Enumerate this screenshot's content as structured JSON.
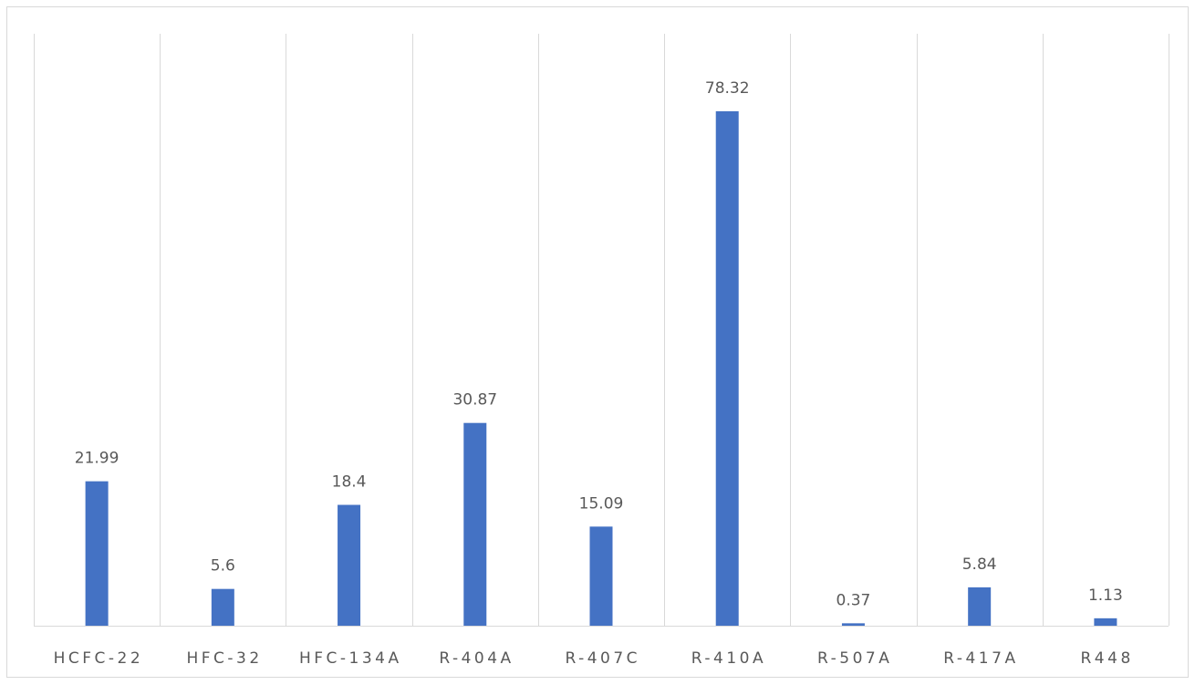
{
  "chart_data": {
    "type": "bar",
    "title": "",
    "xlabel": "",
    "ylabel": "",
    "categories": [
      "HCFC-22",
      "HFC-32",
      "HFC-134A",
      "R-404A",
      "R-407C",
      "R-410A",
      "R-507A",
      "R-417A",
      "R448"
    ],
    "series": [
      {
        "values": [
          21.99,
          5.6,
          18.4,
          30.87,
          15.09,
          78.32,
          0.37,
          5.84,
          1.13
        ]
      }
    ],
    "data_labels": [
      "21.99",
      "5.6",
      "18.4",
      "30.87",
      "15.09",
      "78.32",
      "0.37",
      "5.84",
      "1.13"
    ],
    "ylim": [
      0,
      78.32
    ],
    "grid": "vertical category separators",
    "legend": "none",
    "bar_color": "#4472C4",
    "label_color": "#595959",
    "grid_color": "#d9d9d9"
  }
}
